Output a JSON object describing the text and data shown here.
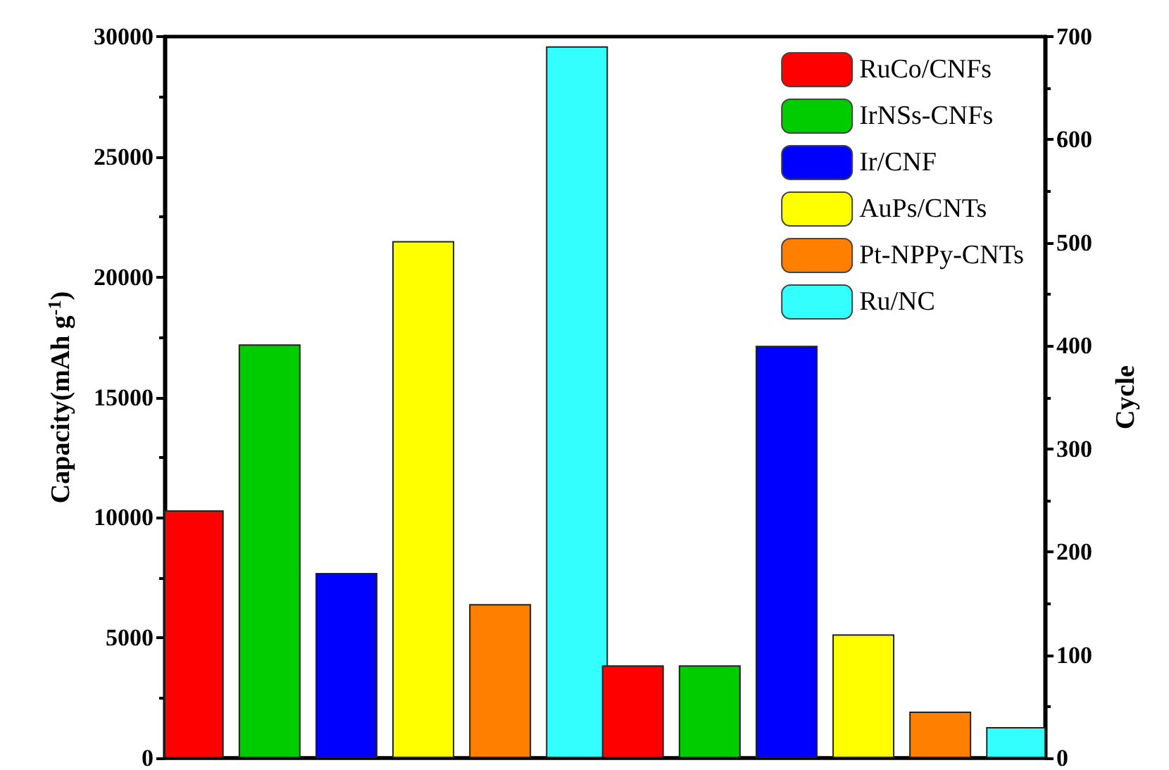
{
  "chart_data": {
    "type": "bar",
    "categories": [
      null,
      null
    ],
    "ylabel": "Capacity(mAh g$^{-1}$)",
    "y2label": "Cycle",
    "ylim": [
      0,
      30000
    ],
    "yticks": [
      0,
      5000,
      10000,
      15000,
      20000,
      25000,
      30000
    ],
    "y2lim": [
      0,
      700
    ],
    "y2ticks": [
      0,
      100,
      200,
      300,
      400,
      500,
      600,
      700
    ],
    "legend": "top right",
    "grid": false,
    "series": [
      {
        "name": "RuCo/CNFs",
        "color": "#ff0000",
        "values": [
          10300,
          null
        ]
      },
      {
        "name": "IrNSs-CNFs",
        "color": "#00cc00",
        "values": [
          17200,
          null
        ]
      },
      {
        "name": "Ir/CNF",
        "color": "#0000ff",
        "values": [
          7700,
          null
        ]
      },
      {
        "name": "AuPs/CNTs",
        "color": "#ffff00",
        "values": [
          21500,
          null
        ]
      },
      {
        "name": "Pt-NPPy-CNTs",
        "color": "#ff8000",
        "values": [
          6400,
          null
        ]
      },
      {
        "name": "Ru/NC",
        "color": "#33ffff",
        "values": [
          29600,
          null
        ]
      },
      {
        "color": "#ff0000",
        "axis": "y2",
        "values": [
          null,
          90
        ]
      },
      {
        "color": "#00cc00",
        "axis": "y2",
        "values": [
          null,
          90
        ]
      },
      {
        "color": "#0000ff",
        "axis": "y2",
        "values": [
          null,
          400
        ]
      },
      {
        "color": "#ffff00",
        "axis": "y2",
        "values": [
          null,
          120
        ]
      },
      {
        "color": "#ff8000",
        "axis": "y2",
        "values": [
          null,
          45
        ]
      },
      {
        "color": "#33ffff",
        "axis": "y2",
        "values": [
          null,
          30
        ]
      }
    ]
  }
}
